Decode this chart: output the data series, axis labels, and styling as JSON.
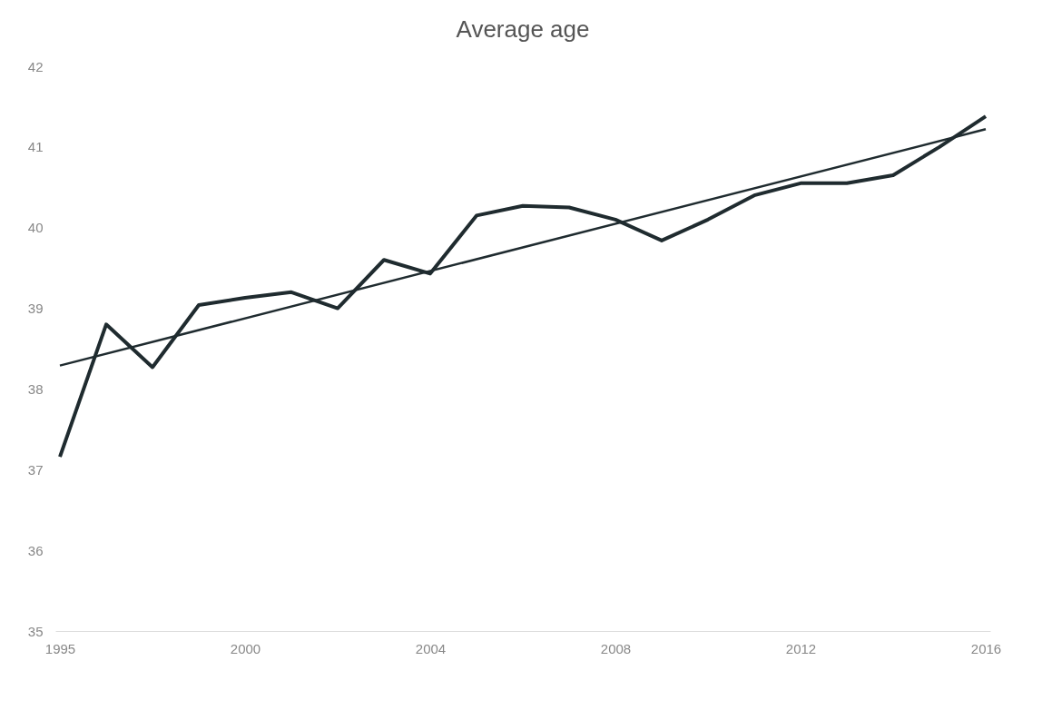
{
  "chart_data": {
    "type": "line",
    "title": "Average age",
    "categories": [
      "1995",
      null,
      null,
      null,
      "2000",
      null,
      null,
      null,
      "2004",
      null,
      null,
      null,
      "2008",
      null,
      null,
      null,
      "2012",
      null,
      null,
      null,
      "2016"
    ],
    "series": [
      {
        "color": "#1f2b2f",
        "values": [
          37.16,
          38.8,
          38.27,
          39.04,
          39.13,
          39.2,
          39.0,
          39.6,
          39.43,
          40.15,
          40.27,
          40.25,
          40.1,
          39.84,
          40.1,
          40.4,
          40.55,
          40.55,
          40.65,
          41.0,
          41.38
        ]
      },
      {
        "color": "#1f2b2f",
        "values": [
          38.29,
          null,
          null,
          null,
          null,
          null,
          null,
          null,
          null,
          null,
          null,
          null,
          null,
          null,
          null,
          null,
          null,
          null,
          null,
          null,
          41.22
        ]
      }
    ],
    "ylim": [
      35,
      42
    ],
    "yticks": [
      35,
      36,
      37,
      38,
      39,
      40,
      41,
      42
    ],
    "grid": false
  }
}
